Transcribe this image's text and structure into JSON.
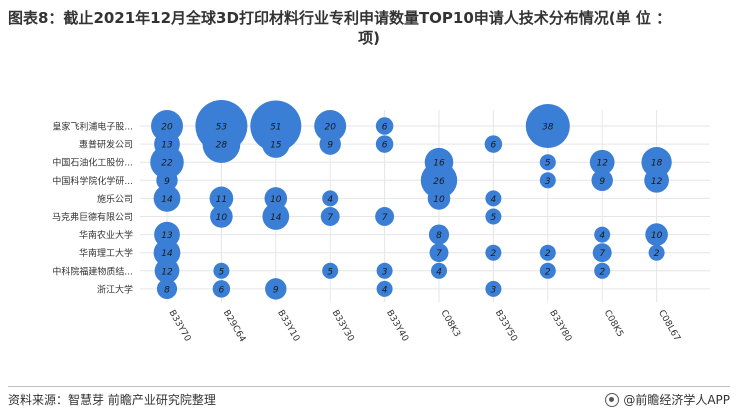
{
  "title": {
    "line1": "图表8：截止2021年12月全球3D打印材料行业专利申请数量TOP10申请人技术分布情况(单 位 ：",
    "line2": "项)"
  },
  "footer": {
    "source": "资料来源：智慧芽 前瞻产业研究院整理",
    "brand": "@前瞻经济学人APP"
  },
  "colors": {
    "bubble": "#3a7fd5",
    "bubble_text": "#1a1a1a",
    "grid": "#e6e6e6",
    "axis_text": "#333333"
  },
  "chart_data": {
    "type": "scatter",
    "subtype": "bubble-matrix",
    "applicants": [
      "皇家飞利浦电子股...",
      "惠普研发公司",
      "中国石油化工股份...",
      "中国科学院化学研...",
      "施乐公司",
      "马克弗巨德有限公司",
      "华南农业大学",
      "华南理工大学",
      "中科院福建物质结...",
      "浙江大学"
    ],
    "ipc_codes": [
      "B33Y70",
      "B29C64",
      "B33Y10",
      "B33Y30",
      "B33Y40",
      "C08K3",
      "B33Y50",
      "B33Y80",
      "C08K5",
      "C08L67"
    ],
    "points": [
      {
        "applicant": "皇家飞利浦电子股...",
        "ipc": "B33Y70",
        "value": 20
      },
      {
        "applicant": "皇家飞利浦电子股...",
        "ipc": "B29C64",
        "value": 53
      },
      {
        "applicant": "皇家飞利浦电子股...",
        "ipc": "B33Y10",
        "value": 51
      },
      {
        "applicant": "皇家飞利浦电子股...",
        "ipc": "B33Y30",
        "value": 20
      },
      {
        "applicant": "皇家飞利浦电子股...",
        "ipc": "B33Y40",
        "value": 6
      },
      {
        "applicant": "皇家飞利浦电子股...",
        "ipc": "B33Y80",
        "value": 38
      },
      {
        "applicant": "惠普研发公司",
        "ipc": "B33Y70",
        "value": 13
      },
      {
        "applicant": "惠普研发公司",
        "ipc": "B29C64",
        "value": 28
      },
      {
        "applicant": "惠普研发公司",
        "ipc": "B33Y10",
        "value": 15
      },
      {
        "applicant": "惠普研发公司",
        "ipc": "B33Y30",
        "value": 9
      },
      {
        "applicant": "惠普研发公司",
        "ipc": "B33Y40",
        "value": 6
      },
      {
        "applicant": "惠普研发公司",
        "ipc": "B33Y50",
        "value": 6
      },
      {
        "applicant": "中国石油化工股份...",
        "ipc": "B33Y70",
        "value": 22
      },
      {
        "applicant": "中国石油化工股份...",
        "ipc": "C08K3",
        "value": 16
      },
      {
        "applicant": "中国石油化工股份...",
        "ipc": "B33Y80",
        "value": 5
      },
      {
        "applicant": "中国石油化工股份...",
        "ipc": "C08K5",
        "value": 12
      },
      {
        "applicant": "中国石油化工股份...",
        "ipc": "C08L67",
        "value": 18
      },
      {
        "applicant": "中国科学院化学研...",
        "ipc": "B33Y70",
        "value": 9
      },
      {
        "applicant": "中国科学院化学研...",
        "ipc": "C08K3",
        "value": 26
      },
      {
        "applicant": "中国科学院化学研...",
        "ipc": "B33Y80",
        "value": 3
      },
      {
        "applicant": "中国科学院化学研...",
        "ipc": "C08K5",
        "value": 9
      },
      {
        "applicant": "中国科学院化学研...",
        "ipc": "C08L67",
        "value": 12
      },
      {
        "applicant": "施乐公司",
        "ipc": "B33Y70",
        "value": 14
      },
      {
        "applicant": "施乐公司",
        "ipc": "B29C64",
        "value": 11
      },
      {
        "applicant": "施乐公司",
        "ipc": "B33Y10",
        "value": 10
      },
      {
        "applicant": "施乐公司",
        "ipc": "B33Y30",
        "value": 4
      },
      {
        "applicant": "施乐公司",
        "ipc": "C08K3",
        "value": 10
      },
      {
        "applicant": "施乐公司",
        "ipc": "B33Y50",
        "value": 4
      },
      {
        "applicant": "马克弗巨德有限公司",
        "ipc": "B29C64",
        "value": 10
      },
      {
        "applicant": "马克弗巨德有限公司",
        "ipc": "B33Y10",
        "value": 14
      },
      {
        "applicant": "马克弗巨德有限公司",
        "ipc": "B33Y30",
        "value": 7
      },
      {
        "applicant": "马克弗巨德有限公司",
        "ipc": "B33Y40",
        "value": 7
      },
      {
        "applicant": "马克弗巨德有限公司",
        "ipc": "B33Y50",
        "value": 5
      },
      {
        "applicant": "华南农业大学",
        "ipc": "B33Y70",
        "value": 13
      },
      {
        "applicant": "华南农业大学",
        "ipc": "C08K3",
        "value": 8
      },
      {
        "applicant": "华南农业大学",
        "ipc": "C08K5",
        "value": 4
      },
      {
        "applicant": "华南农业大学",
        "ipc": "C08L67",
        "value": 10
      },
      {
        "applicant": "华南理工大学",
        "ipc": "B33Y70",
        "value": 14
      },
      {
        "applicant": "华南理工大学",
        "ipc": "C08K3",
        "value": 7
      },
      {
        "applicant": "华南理工大学",
        "ipc": "B33Y50",
        "value": 2
      },
      {
        "applicant": "华南理工大学",
        "ipc": "B33Y80",
        "value": 2
      },
      {
        "applicant": "华南理工大学",
        "ipc": "C08K5",
        "value": 7
      },
      {
        "applicant": "华南理工大学",
        "ipc": "C08L67",
        "value": 2
      },
      {
        "applicant": "中科院福建物质结...",
        "ipc": "B33Y70",
        "value": 12
      },
      {
        "applicant": "中科院福建物质结...",
        "ipc": "B29C64",
        "value": 5
      },
      {
        "applicant": "中科院福建物质结...",
        "ipc": "B33Y30",
        "value": 5
      },
      {
        "applicant": "中科院福建物质结...",
        "ipc": "B33Y40",
        "value": 3
      },
      {
        "applicant": "中科院福建物质结...",
        "ipc": "C08K3",
        "value": 4
      },
      {
        "applicant": "中科院福建物质结...",
        "ipc": "B33Y80",
        "value": 2
      },
      {
        "applicant": "中科院福建物质结...",
        "ipc": "C08K5",
        "value": 2
      },
      {
        "applicant": "浙江大学",
        "ipc": "B33Y70",
        "value": 8
      },
      {
        "applicant": "浙江大学",
        "ipc": "B29C64",
        "value": 6
      },
      {
        "applicant": "浙江大学",
        "ipc": "B33Y10",
        "value": 9
      },
      {
        "applicant": "浙江大学",
        "ipc": "B33Y40",
        "value": 4
      },
      {
        "applicant": "浙江大学",
        "ipc": "B33Y50",
        "value": 3
      }
    ]
  }
}
